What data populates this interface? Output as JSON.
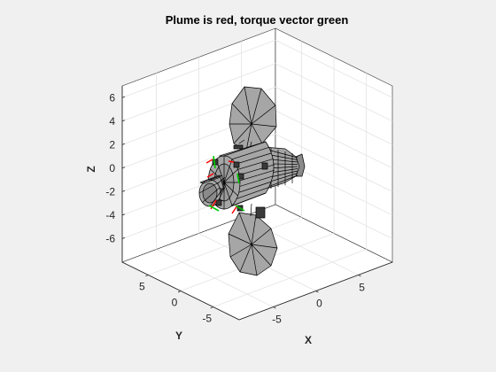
{
  "chart_data": {
    "type": "3d-plot",
    "title": "Plume is red, torque vector green",
    "axes": {
      "x": {
        "label": "X",
        "ticks": [
          "-5",
          "0",
          "5"
        ],
        "range": [
          -9,
          9
        ]
      },
      "y": {
        "label": "Y",
        "ticks": [
          "-5",
          "0",
          "5"
        ],
        "range": [
          -9,
          9
        ]
      },
      "z": {
        "label": "Z",
        "ticks": [
          "-6",
          "-4",
          "-2",
          "0",
          "2",
          "4",
          "6"
        ],
        "range": [
          -8,
          7
        ]
      }
    },
    "grid": true,
    "box": true,
    "view": "isometric",
    "colors": {
      "background": "#f0f0f0",
      "axes": "#ffffff",
      "grid": "#e3e3e3",
      "spacecraft": "#a6a6a6",
      "edges": "#000000",
      "plume": "#ff0000",
      "torque": "#00cc00"
    }
  }
}
